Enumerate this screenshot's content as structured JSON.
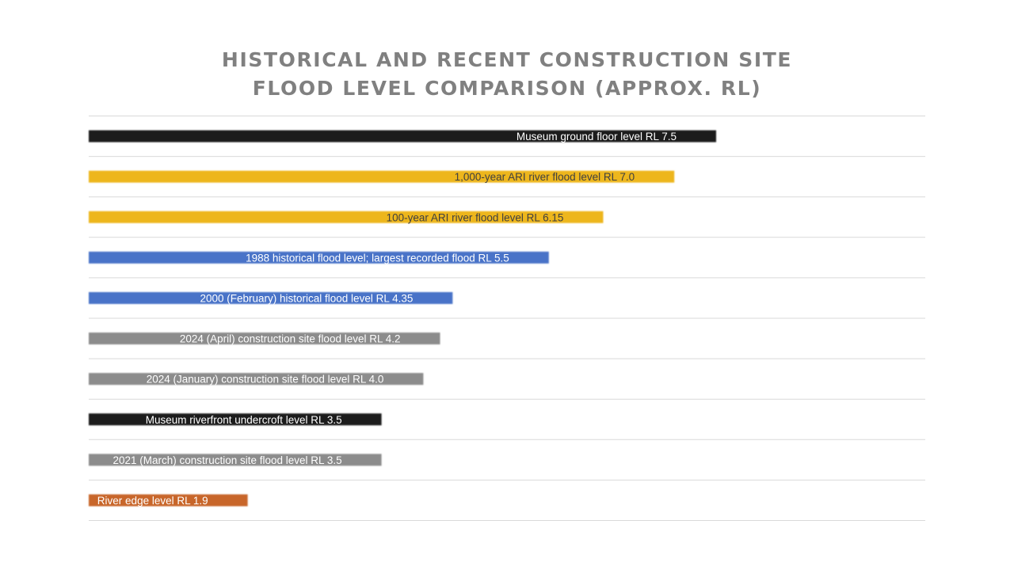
{
  "title_line1": "HISTORICAL AND RECENT CONSTRUCTION SITE",
  "title_line2": "FLOOD LEVEL COMPARISON (APPROX. RL)",
  "colors": {
    "black": "#1a1a1a",
    "gold": "#EDB61E",
    "blue": "#4A73C8",
    "gray": "#8C8C8C",
    "orange": "#C8662A",
    "gridline": "#d9d9d9",
    "label_light": "#ffffff",
    "label_dark": "#404040"
  },
  "chart_data": {
    "type": "bar",
    "orientation": "horizontal",
    "title": "HISTORICAL AND RECENT CONSTRUCTION SITE FLOOD LEVEL COMPARISON (APPROX. RL)",
    "xlabel": "",
    "ylabel": "",
    "xlim": [
      0,
      10
    ],
    "grid": true,
    "bars": [
      {
        "label": "Museum ground floor level RL 7.5",
        "value": 7.5,
        "color": "black",
        "text": "light"
      },
      {
        "label": "1,000-year ARI river flood level RL 7.0",
        "value": 7.0,
        "color": "gold",
        "text": "dark"
      },
      {
        "label": "100-year ARI river flood level RL 6.15",
        "value": 6.15,
        "color": "gold",
        "text": "dark"
      },
      {
        "label": "1988 historical flood level; largest recorded flood RL 5.5",
        "value": 5.5,
        "color": "blue",
        "text": "light"
      },
      {
        "label": "2000 (February) historical flood level RL 4.35",
        "value": 4.35,
        "color": "blue",
        "text": "light"
      },
      {
        "label": "2024 (April) construction site flood level RL 4.2",
        "value": 4.2,
        "color": "gray",
        "text": "light"
      },
      {
        "label": "2024 (January) construction site flood level RL 4.0",
        "value": 4.0,
        "color": "gray",
        "text": "light"
      },
      {
        "label": "Museum riverfront undercroft level RL 3.5",
        "value": 3.5,
        "color": "black",
        "text": "light"
      },
      {
        "label": "2021 (March) construction site flood level RL 3.5",
        "value": 3.5,
        "color": "gray",
        "text": "light"
      },
      {
        "label": "River edge level RL 1.9",
        "value": 1.9,
        "color": "orange",
        "text": "light"
      }
    ]
  }
}
